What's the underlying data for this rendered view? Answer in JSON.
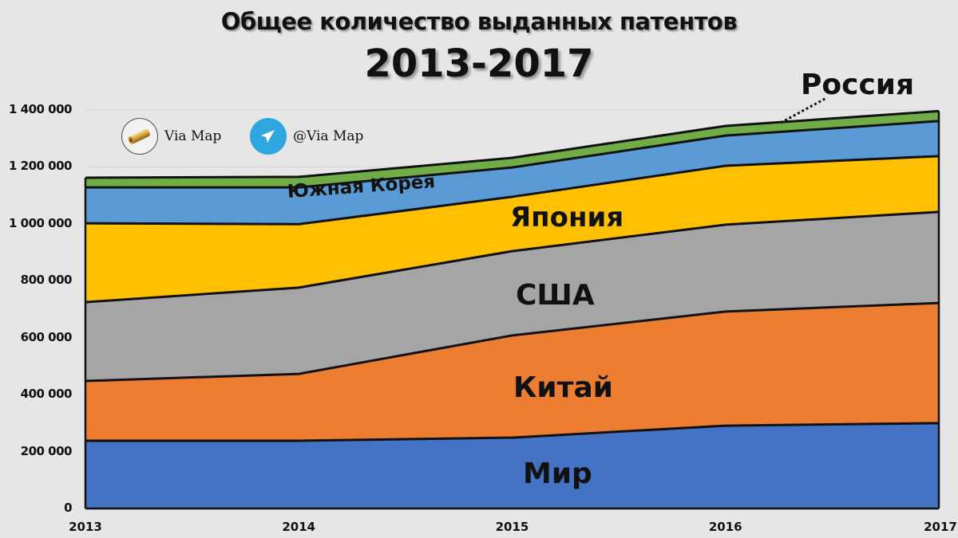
{
  "title": {
    "line1": "Общее количество выданных патентов",
    "line2": "2013-2017"
  },
  "branding": {
    "site_label": "Via Map",
    "telegram_label": "@Via Map",
    "site_icon": "scroll-icon",
    "telegram_icon": "telegram-icon"
  },
  "colors": {
    "Мир": "#4472c4",
    "Китай": "#ed7d31",
    "США": "#a5a5a5",
    "Япония": "#ffc000",
    "Южная Корея": "#5b9bd5",
    "Россия": "#70ad47",
    "background": "#e7e6e6"
  },
  "y_ticks": [
    "0",
    "200 000",
    "400 000",
    "600 000",
    "800 000",
    "1 000 000",
    "1 200 000",
    "1 400 000"
  ],
  "x_ticks": [
    "2013",
    "2014",
    "2015",
    "2016",
    "2017"
  ],
  "labels": {
    "world": "Мир",
    "china": "Китай",
    "usa": "США",
    "japan": "Япония",
    "korea": "Южная Корея",
    "russia": "Россия"
  },
  "chart_data": {
    "type": "area",
    "stacked": true,
    "title": "Общее количество выданных патентов 2013-2017",
    "xlabel": "",
    "ylabel": "",
    "ylim": [
      0,
      1400000
    ],
    "grid": true,
    "legend_position": "inline labels",
    "categories": [
      "2013",
      "2014",
      "2015",
      "2016",
      "2017"
    ],
    "series": [
      {
        "name": "Мир",
        "values": [
          238000,
          238000,
          249000,
          291000,
          300000
        ]
      },
      {
        "name": "Китай",
        "values": [
          210000,
          235000,
          359000,
          401000,
          422000
        ]
      },
      {
        "name": "США",
        "values": [
          277000,
          303000,
          296000,
          305000,
          320000
        ]
      },
      {
        "name": "Япония",
        "values": [
          277000,
          223000,
          191000,
          207000,
          196000
        ]
      },
      {
        "name": "Южная Корея",
        "values": [
          126000,
          129000,
          103000,
          106000,
          123000
        ]
      },
      {
        "name": "Россия",
        "values": [
          34000,
          37000,
          34000,
          34000,
          35000
        ]
      }
    ]
  }
}
